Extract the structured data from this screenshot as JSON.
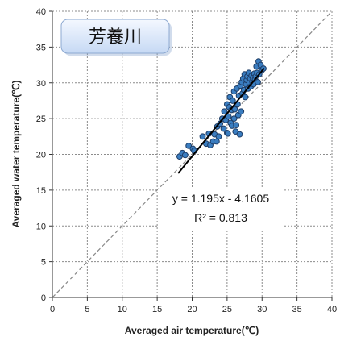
{
  "chart_data": {
    "type": "scatter",
    "title": "芳養川",
    "xlabel": "Averaged air temperature(℃)",
    "ylabel": "Averaged water temperature(℃)",
    "xlim": [
      0,
      40
    ],
    "ylim": [
      0,
      40
    ],
    "xticks": [
      0,
      5,
      10,
      15,
      20,
      25,
      30,
      35,
      40
    ],
    "yticks": [
      0,
      5,
      10,
      15,
      20,
      25,
      30,
      35,
      40
    ],
    "grid": true,
    "reference_line": {
      "style": "dashed",
      "x": [
        0,
        40
      ],
      "y": [
        0,
        40
      ]
    },
    "regression": {
      "slope": 1.195,
      "intercept": -4.1605,
      "x_range": [
        18,
        30.3
      ]
    },
    "annotations": [
      "y = 1.195x - 4.1605",
      "R² = 0.813"
    ],
    "points": [
      [
        18.2,
        19.7
      ],
      [
        18.6,
        20.2
      ],
      [
        19.0,
        19.9
      ],
      [
        19.5,
        21.2
      ],
      [
        20.1,
        20.8
      ],
      [
        20.3,
        20.5
      ],
      [
        21.5,
        22.5
      ],
      [
        22.0,
        21.5
      ],
      [
        22.4,
        22.9
      ],
      [
        22.6,
        21.3
      ],
      [
        23.0,
        21.8
      ],
      [
        23.2,
        22.8
      ],
      [
        23.5,
        21.8
      ],
      [
        23.6,
        23.9
      ],
      [
        23.8,
        22.5
      ],
      [
        24.0,
        24.3
      ],
      [
        24.3,
        25.0
      ],
      [
        24.5,
        23.6
      ],
      [
        24.6,
        26.0
      ],
      [
        24.8,
        24.8
      ],
      [
        25.0,
        27.0
      ],
      [
        25.0,
        23.0
      ],
      [
        25.1,
        22.9
      ],
      [
        25.2,
        25.3
      ],
      [
        25.3,
        26.6
      ],
      [
        25.4,
        28.0
      ],
      [
        25.5,
        24.4
      ],
      [
        25.6,
        26.2
      ],
      [
        25.7,
        24.0
      ],
      [
        25.8,
        27.5
      ],
      [
        26.0,
        25.0
      ],
      [
        26.0,
        28.8
      ],
      [
        26.1,
        26.3
      ],
      [
        26.2,
        23.2
      ],
      [
        26.3,
        24.1
      ],
      [
        26.4,
        29.2
      ],
      [
        26.5,
        27.0
      ],
      [
        26.6,
        25.5
      ],
      [
        26.7,
        28.2
      ],
      [
        26.8,
        22.8
      ],
      [
        26.9,
        29.6
      ],
      [
        27.0,
        26.0
      ],
      [
        27.1,
        30.1
      ],
      [
        27.2,
        28.5
      ],
      [
        27.3,
        30.6
      ],
      [
        27.4,
        29.0
      ],
      [
        27.5,
        31.2
      ],
      [
        27.6,
        28.0
      ],
      [
        27.7,
        29.8
      ],
      [
        27.8,
        30.4
      ],
      [
        27.9,
        30.9
      ],
      [
        28.0,
        29.2
      ],
      [
        28.1,
        31.4
      ],
      [
        28.2,
        30.0
      ],
      [
        28.3,
        30.6
      ],
      [
        28.4,
        29.5
      ],
      [
        28.5,
        31.0
      ],
      [
        28.6,
        30.2
      ],
      [
        28.7,
        30.7
      ],
      [
        28.8,
        29.8
      ],
      [
        28.9,
        31.3
      ],
      [
        29.0,
        30.5
      ],
      [
        29.1,
        30.9
      ],
      [
        29.2,
        32.3
      ],
      [
        29.3,
        31.4
      ],
      [
        29.4,
        30.1
      ],
      [
        29.5,
        33.0
      ],
      [
        29.6,
        31.2
      ],
      [
        29.8,
        32.5
      ],
      [
        30.0,
        31.8
      ],
      [
        30.2,
        32.0
      ]
    ],
    "colors": {
      "point_fill": "#3a7dc0",
      "point_stroke": "#1e3d66",
      "regression": "#000000",
      "reference": "#888888",
      "grid": "#8c8c8c"
    }
  }
}
